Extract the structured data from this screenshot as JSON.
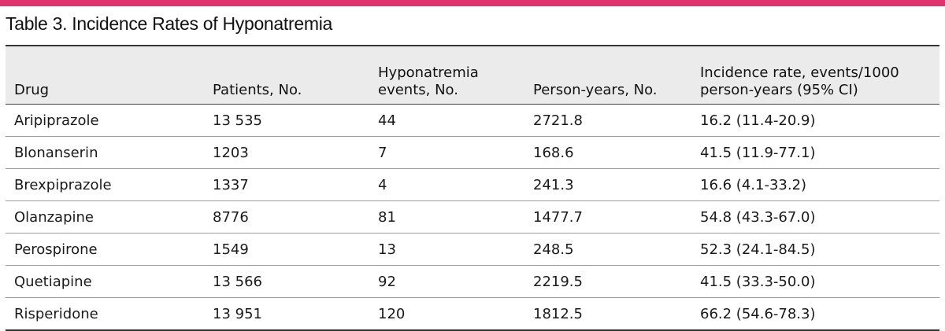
{
  "accent_color": "#e0336e",
  "header_background": "#ebebeb",
  "title": "Table 3. Incidence Rates of Hyponatremia",
  "columns": [
    {
      "line1": "Drug",
      "line2": ""
    },
    {
      "line1": "Patients, No.",
      "line2": ""
    },
    {
      "line1": "Hyponatremia",
      "line2": "events, No."
    },
    {
      "line1": "Person-years, No.",
      "line2": ""
    },
    {
      "line1": "Incidence rate, events/1000",
      "line2": "person-years (95% CI)"
    }
  ],
  "rows": [
    {
      "drug": "Aripiprazole",
      "patients": "13 535",
      "events": "44",
      "person_years": "2721.8",
      "incidence": "16.2 (11.4-20.9)"
    },
    {
      "drug": "Blonanserin",
      "patients": "1203",
      "events": "7",
      "person_years": "168.6",
      "incidence": "41.5 (11.9-77.1)"
    },
    {
      "drug": "Brexpiprazole",
      "patients": "1337",
      "events": "4",
      "person_years": "241.3",
      "incidence": "16.6 (4.1-33.2)"
    },
    {
      "drug": "Olanzapine",
      "patients": "8776",
      "events": "81",
      "person_years": "1477.7",
      "incidence": "54.8 (43.3-67.0)"
    },
    {
      "drug": "Perospirone",
      "patients": "1549",
      "events": "13",
      "person_years": "248.5",
      "incidence": "52.3 (24.1-84.5)"
    },
    {
      "drug": "Quetiapine",
      "patients": "13 566",
      "events": "92",
      "person_years": "2219.5",
      "incidence": "41.5 (33.3-50.0)"
    },
    {
      "drug": "Risperidone",
      "patients": "13 951",
      "events": "120",
      "person_years": "1812.5",
      "incidence": "66.2 (54.6-78.3)"
    }
  ]
}
